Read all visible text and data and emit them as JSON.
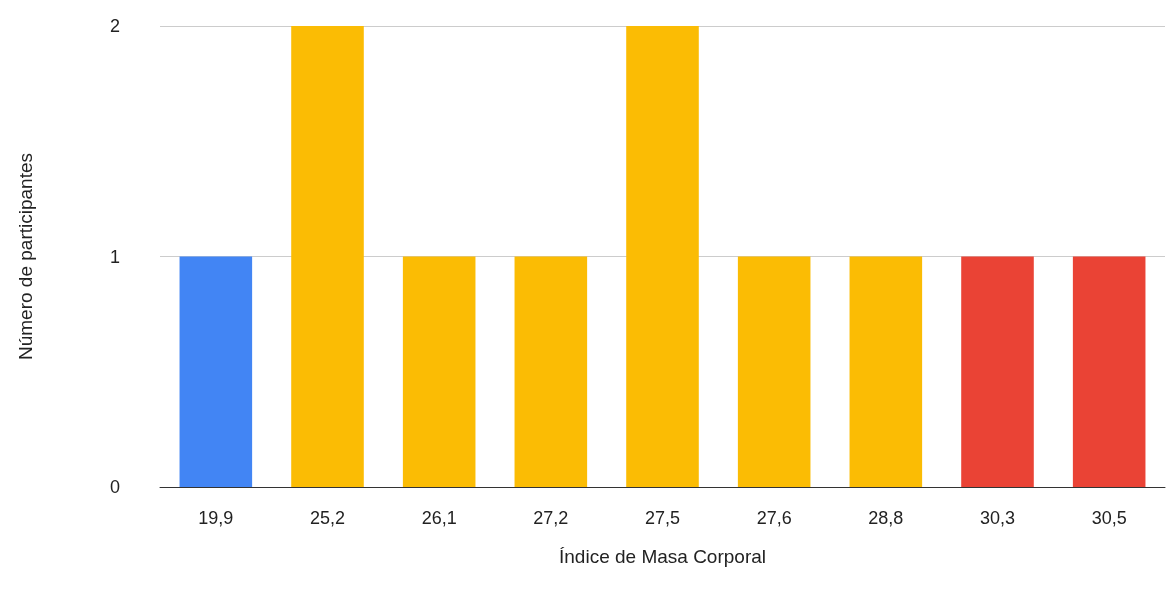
{
  "chart_data": {
    "type": "bar",
    "xlabel": "Índice de Masa Corporal",
    "ylabel": "Número de participantes",
    "categories": [
      "19,9",
      "25,2",
      "26,1",
      "27,2",
      "27,5",
      "27,6",
      "28,8",
      "30,3",
      "30,5"
    ],
    "values": [
      1,
      2,
      1,
      1,
      2,
      1,
      1,
      1,
      1
    ],
    "colors": [
      "#4285f4",
      "#fbbc04",
      "#fbbc04",
      "#fbbc04",
      "#fbbc04",
      "#fbbc04",
      "#fbbc04",
      "#ea4335",
      "#ea4335"
    ],
    "ylim": [
      0,
      2
    ],
    "yticks": [
      0,
      1,
      2
    ],
    "grid": "y"
  }
}
